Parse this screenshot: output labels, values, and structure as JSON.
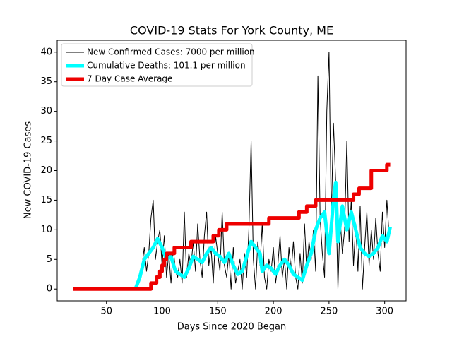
{
  "chart_data": {
    "type": "line",
    "title": "COVID-19 Stats For York County, ME",
    "x_label": "Days Since 2020 Began",
    "y_label": "New COVID-19 Cases",
    "xlim": [
      5.75,
      319.25
    ],
    "ylim": [
      -2,
      42
    ],
    "xticks": [
      50,
      100,
      150,
      200,
      250,
      300
    ],
    "yticks": [
      0,
      5,
      10,
      15,
      20,
      25,
      30,
      35,
      40
    ],
    "grid": false,
    "legend": "upper left",
    "series": [
      {
        "name": "New Confirmed Cases: 7000 per million",
        "color": "#000000",
        "width": 1,
        "drawstyle": "default",
        "x": [
          76,
          78,
          80,
          82,
          84,
          86,
          88,
          90,
          92,
          94,
          96,
          98,
          100,
          102,
          104,
          106,
          108,
          110,
          112,
          114,
          116,
          118,
          120,
          122,
          124,
          126,
          128,
          130,
          132,
          134,
          136,
          138,
          140,
          142,
          144,
          146,
          148,
          150,
          152,
          154,
          156,
          158,
          160,
          162,
          164,
          166,
          168,
          170,
          172,
          174,
          176,
          178,
          180,
          182,
          184,
          186,
          188,
          190,
          192,
          194,
          196,
          198,
          200,
          202,
          204,
          206,
          208,
          210,
          212,
          214,
          216,
          218,
          220,
          222,
          224,
          226,
          228,
          230,
          232,
          234,
          236,
          238,
          240,
          242,
          244,
          246,
          248,
          250,
          252,
          254,
          256,
          258,
          260,
          262,
          264,
          266,
          268,
          270,
          272,
          274,
          276,
          278,
          280,
          282,
          284,
          286,
          288,
          290,
          292,
          294,
          296,
          298,
          300,
          302,
          304
        ],
        "values": [
          0,
          1,
          2,
          4,
          7,
          3,
          6,
          12,
          15,
          5,
          8,
          10,
          4,
          9,
          2,
          6,
          1,
          7,
          3,
          2,
          5,
          1,
          13,
          2,
          6,
          4,
          8,
          3,
          11,
          5,
          2,
          9,
          13,
          4,
          7,
          1,
          9,
          6,
          3,
          13,
          4,
          2,
          6,
          0,
          7,
          1,
          3,
          5,
          0,
          6,
          2,
          10,
          25,
          5,
          0,
          8,
          4,
          11,
          2,
          0,
          5,
          3,
          7,
          1,
          4,
          9,
          2,
          5,
          0,
          7,
          3,
          8,
          2,
          0,
          6,
          1,
          11,
          3,
          8,
          5,
          10,
          3,
          36,
          12,
          6,
          2,
          30,
          40,
          12,
          28,
          18,
          0,
          12,
          6,
          10,
          25,
          8,
          15,
          4,
          11,
          3,
          14,
          0,
          7,
          13,
          4,
          10,
          5,
          12,
          6,
          3,
          13,
          7,
          15,
          9
        ]
      },
      {
        "name": "Cumulative Deaths: 101.1 per million",
        "color": "#00ffff",
        "width": 5,
        "drawstyle": "default",
        "x": [
          76,
          80,
          84,
          88,
          92,
          96,
          100,
          104,
          108,
          112,
          116,
          120,
          124,
          128,
          132,
          136,
          140,
          144,
          148,
          152,
          156,
          160,
          164,
          168,
          172,
          176,
          180,
          184,
          188,
          190,
          194,
          198,
          202,
          206,
          210,
          214,
          218,
          222,
          226,
          230,
          234,
          238,
          242,
          246,
          250,
          254,
          256,
          258,
          262,
          266,
          270,
          274,
          278,
          282,
          286,
          290,
          294,
          298,
          302,
          305
        ],
        "values": [
          0,
          2,
          5,
          6,
          7,
          8.5,
          7,
          5,
          5.5,
          3,
          2.5,
          2,
          3.5,
          5.5,
          5,
          4.5,
          6,
          7,
          6,
          5.5,
          4.5,
          6,
          4,
          2.5,
          3,
          5.5,
          8,
          7,
          6,
          3,
          4,
          3.5,
          2.5,
          4,
          5,
          4,
          2.5,
          2,
          1.5,
          4,
          6,
          10,
          12,
          13,
          6,
          15,
          18,
          8,
          14,
          10,
          13,
          10,
          7,
          6,
          5.5,
          6,
          7,
          9,
          8,
          10.5
        ]
      },
      {
        "name": "7 Day Case Average",
        "color": "#ee0000",
        "width": 5,
        "drawstyle": "steps-post",
        "x": [
          20,
          90,
          95,
          98,
          100,
          102,
          104,
          111,
          126,
          146,
          151,
          158,
          196,
          223,
          230,
          238,
          272,
          277,
          288,
          302,
          305
        ],
        "values": [
          0,
          1,
          2,
          3,
          4,
          5,
          6,
          7,
          8,
          9,
          10,
          11,
          12,
          13,
          14,
          15,
          16,
          17,
          20,
          21,
          21
        ]
      }
    ]
  }
}
